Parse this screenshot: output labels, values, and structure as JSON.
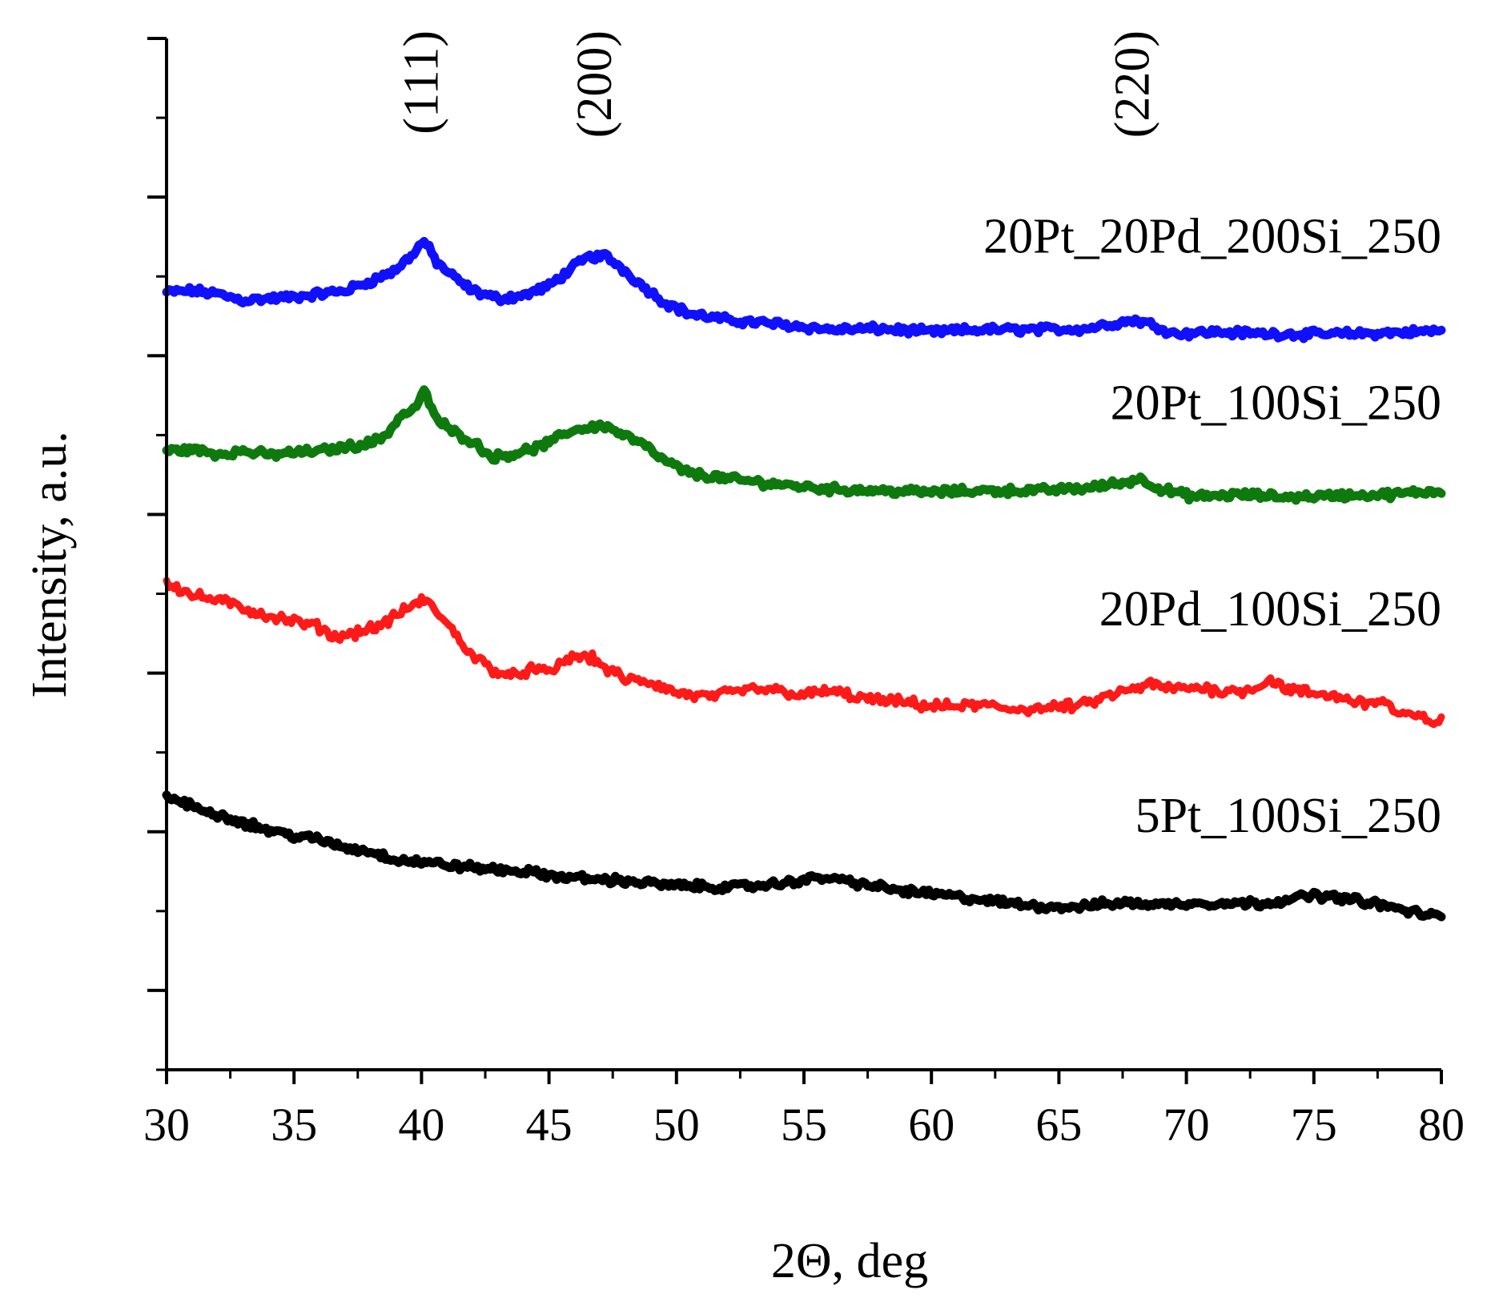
{
  "chart_data": {
    "type": "line",
    "title": "",
    "xlabel": "2Θ, deg",
    "ylabel": "Intensity, a.u.",
    "xlim": [
      30,
      80
    ],
    "ylim": [
      0,
      13
    ],
    "x_ticks": [
      30,
      35,
      40,
      45,
      50,
      55,
      60,
      65,
      70,
      75,
      80
    ],
    "x_tick_labels": [
      "30",
      "35",
      "40",
      "45",
      "50",
      "55",
      "60",
      "65",
      "70",
      "75",
      "80"
    ],
    "y_tick_labels_shown": false,
    "y_major_ticks": [
      1,
      3,
      5,
      7,
      9,
      11,
      13
    ],
    "peak_annotations": [
      {
        "label": "(111)",
        "x": 40
      },
      {
        "label": "(200)",
        "x": 46.8
      },
      {
        "label": "(220)",
        "x": 67.9
      }
    ],
    "series": [
      {
        "name": "20Pt_20Pd_200Si_250",
        "color": "#1010ff",
        "label_anchor": [
          80,
          10.3
        ],
        "points": [
          [
            30,
            9.8
          ],
          [
            31,
            9.82
          ],
          [
            32,
            9.78
          ],
          [
            33,
            9.7
          ],
          [
            34,
            9.72
          ],
          [
            35,
            9.74
          ],
          [
            36,
            9.78
          ],
          [
            37,
            9.82
          ],
          [
            38,
            9.94
          ],
          [
            39,
            10.08
          ],
          [
            39.7,
            10.3
          ],
          [
            40.1,
            10.45
          ],
          [
            40.6,
            10.18
          ],
          [
            41.3,
            9.98
          ],
          [
            42,
            9.82
          ],
          [
            43,
            9.72
          ],
          [
            44,
            9.76
          ],
          [
            45,
            9.88
          ],
          [
            45.8,
            10.08
          ],
          [
            46.5,
            10.24
          ],
          [
            47.2,
            10.26
          ],
          [
            47.8,
            10.12
          ],
          [
            48.6,
            9.9
          ],
          [
            49.5,
            9.68
          ],
          [
            50.5,
            9.53
          ],
          [
            52,
            9.45
          ],
          [
            54,
            9.4
          ],
          [
            56,
            9.33
          ],
          [
            58,
            9.34
          ],
          [
            60,
            9.3
          ],
          [
            62,
            9.33
          ],
          [
            64,
            9.33
          ],
          [
            66,
            9.34
          ],
          [
            67,
            9.4
          ],
          [
            68,
            9.45
          ],
          [
            68.8,
            9.38
          ],
          [
            69.5,
            9.28
          ],
          [
            71,
            9.3
          ],
          [
            73,
            9.28
          ],
          [
            75,
            9.27
          ],
          [
            77,
            9.28
          ],
          [
            79,
            9.3
          ],
          [
            80,
            9.32
          ]
        ]
      },
      {
        "name": "20Pt_100Si_250",
        "color": "#0e7a0e",
        "label_anchor": [
          80,
          8.2
        ],
        "points": [
          [
            30,
            7.8
          ],
          [
            31,
            7.82
          ],
          [
            32,
            7.76
          ],
          [
            33,
            7.8
          ],
          [
            34,
            7.75
          ],
          [
            35,
            7.78
          ],
          [
            36,
            7.8
          ],
          [
            37,
            7.85
          ],
          [
            38,
            7.9
          ],
          [
            38.6,
            8.0
          ],
          [
            39.2,
            8.25
          ],
          [
            39.7,
            8.32
          ],
          [
            40.1,
            8.55
          ],
          [
            40.6,
            8.2
          ],
          [
            41.2,
            8.05
          ],
          [
            42,
            7.92
          ],
          [
            42.8,
            7.72
          ],
          [
            43.5,
            7.76
          ],
          [
            44.3,
            7.82
          ],
          [
            45,
            7.9
          ],
          [
            45.8,
            8.05
          ],
          [
            46.6,
            8.1
          ],
          [
            47.2,
            8.12
          ],
          [
            47.8,
            8.02
          ],
          [
            48.6,
            7.9
          ],
          [
            49.5,
            7.68
          ],
          [
            50.5,
            7.52
          ],
          [
            52,
            7.45
          ],
          [
            54,
            7.38
          ],
          [
            56,
            7.32
          ],
          [
            58,
            7.3
          ],
          [
            60,
            7.28
          ],
          [
            62,
            7.3
          ],
          [
            64,
            7.3
          ],
          [
            66,
            7.33
          ],
          [
            67.5,
            7.4
          ],
          [
            68.2,
            7.45
          ],
          [
            69,
            7.32
          ],
          [
            70.3,
            7.22
          ],
          [
            72,
            7.25
          ],
          [
            74,
            7.22
          ],
          [
            76,
            7.24
          ],
          [
            78,
            7.25
          ],
          [
            80,
            7.3
          ]
        ]
      },
      {
        "name": "20Pd_100Si_250",
        "color": "#ff1a1a",
        "label_anchor": [
          80,
          5.6
        ],
        "points": [
          [
            30,
            6.15
          ],
          [
            31,
            5.98
          ],
          [
            32,
            5.92
          ],
          [
            33,
            5.82
          ],
          [
            34,
            5.72
          ],
          [
            35,
            5.65
          ],
          [
            36,
            5.58
          ],
          [
            36.6,
            5.45
          ],
          [
            37.5,
            5.52
          ],
          [
            38.4,
            5.6
          ],
          [
            39,
            5.72
          ],
          [
            39.6,
            5.85
          ],
          [
            40.1,
            5.92
          ],
          [
            40.6,
            5.78
          ],
          [
            41.3,
            5.5
          ],
          [
            42,
            5.22
          ],
          [
            42.8,
            5.05
          ],
          [
            43.5,
            4.95
          ],
          [
            44.3,
            5.05
          ],
          [
            45,
            5.0
          ],
          [
            45.7,
            5.18
          ],
          [
            46.5,
            5.22
          ],
          [
            47.3,
            5.05
          ],
          [
            48,
            4.92
          ],
          [
            49,
            4.88
          ],
          [
            50,
            4.75
          ],
          [
            51,
            4.7
          ],
          [
            52,
            4.74
          ],
          [
            53,
            4.8
          ],
          [
            54,
            4.78
          ],
          [
            55,
            4.72
          ],
          [
            56,
            4.78
          ],
          [
            57,
            4.7
          ],
          [
            58,
            4.65
          ],
          [
            59,
            4.63
          ],
          [
            60,
            4.58
          ],
          [
            61,
            4.58
          ],
          [
            62,
            4.6
          ],
          [
            63,
            4.55
          ],
          [
            64,
            4.55
          ],
          [
            65,
            4.57
          ],
          [
            66,
            4.6
          ],
          [
            67,
            4.72
          ],
          [
            68,
            4.8
          ],
          [
            68.5,
            4.86
          ],
          [
            69.5,
            4.8
          ],
          [
            70.5,
            4.82
          ],
          [
            71.5,
            4.77
          ],
          [
            72.5,
            4.79
          ],
          [
            73.3,
            4.92
          ],
          [
            74,
            4.79
          ],
          [
            75,
            4.74
          ],
          [
            76,
            4.7
          ],
          [
            77,
            4.62
          ],
          [
            77.7,
            4.66
          ],
          [
            78.3,
            4.48
          ],
          [
            79,
            4.45
          ],
          [
            80,
            4.38
          ]
        ]
      },
      {
        "name": "5Pt_100Si_250",
        "color": "#000000",
        "label_anchor": [
          80,
          3.0
        ],
        "points": [
          [
            30,
            3.45
          ],
          [
            31,
            3.32
          ],
          [
            32,
            3.22
          ],
          [
            33,
            3.12
          ],
          [
            34,
            3.02
          ],
          [
            35,
            2.95
          ],
          [
            36,
            2.9
          ],
          [
            37,
            2.8
          ],
          [
            38,
            2.75
          ],
          [
            39,
            2.65
          ],
          [
            40,
            2.62
          ],
          [
            41,
            2.58
          ],
          [
            42,
            2.55
          ],
          [
            43,
            2.52
          ],
          [
            44,
            2.5
          ],
          [
            45,
            2.45
          ],
          [
            46,
            2.42
          ],
          [
            47,
            2.4
          ],
          [
            48,
            2.38
          ],
          [
            49,
            2.35
          ],
          [
            50,
            2.32
          ],
          [
            51,
            2.31
          ],
          [
            52,
            2.3
          ],
          [
            53,
            2.32
          ],
          [
            54,
            2.34
          ],
          [
            55,
            2.4
          ],
          [
            56,
            2.42
          ],
          [
            57,
            2.36
          ],
          [
            58,
            2.3
          ],
          [
            59,
            2.25
          ],
          [
            60,
            2.22
          ],
          [
            61,
            2.18
          ],
          [
            62,
            2.14
          ],
          [
            63,
            2.1
          ],
          [
            64,
            2.07
          ],
          [
            65,
            2.05
          ],
          [
            66,
            2.06
          ],
          [
            67,
            2.1
          ],
          [
            68,
            2.1
          ],
          [
            69,
            2.08
          ],
          [
            70,
            2.1
          ],
          [
            71,
            2.1
          ],
          [
            72,
            2.1
          ],
          [
            73,
            2.1
          ],
          [
            74,
            2.15
          ],
          [
            75,
            2.2
          ],
          [
            76,
            2.17
          ],
          [
            77,
            2.12
          ],
          [
            78,
            2.05
          ],
          [
            79,
            1.98
          ],
          [
            80,
            1.92
          ]
        ]
      }
    ]
  }
}
